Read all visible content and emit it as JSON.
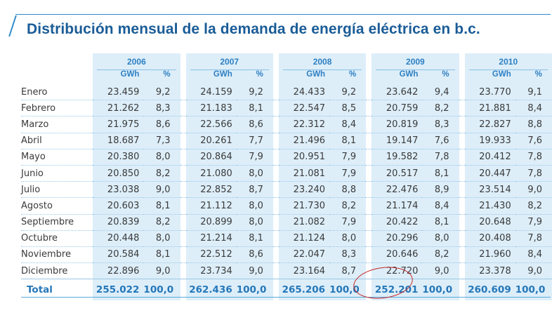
{
  "title": "Distribución mensual de la demanda de energía eléctrica en b.c.",
  "units": {
    "gwh": "GWh",
    "pct": "%"
  },
  "years": [
    "2006",
    "2007",
    "2008",
    "2009",
    "2010"
  ],
  "rows": [
    {
      "month": "Enero",
      "vals": [
        [
          "23.459",
          "9,2"
        ],
        [
          "24.159",
          "9,2"
        ],
        [
          "24.433",
          "9,2"
        ],
        [
          "23.642",
          "9,4"
        ],
        [
          "23.770",
          "9,1"
        ]
      ]
    },
    {
      "month": "Febrero",
      "vals": [
        [
          "21.262",
          "8,3"
        ],
        [
          "21.183",
          "8,1"
        ],
        [
          "22.547",
          "8,5"
        ],
        [
          "20.759",
          "8,2"
        ],
        [
          "21.881",
          "8,4"
        ]
      ]
    },
    {
      "month": "Marzo",
      "vals": [
        [
          "21.975",
          "8,6"
        ],
        [
          "22.566",
          "8,6"
        ],
        [
          "22.312",
          "8,4"
        ],
        [
          "20.819",
          "8,3"
        ],
        [
          "22.827",
          "8,8"
        ]
      ]
    },
    {
      "month": "Abril",
      "vals": [
        [
          "18.687",
          "7,3"
        ],
        [
          "20.261",
          "7,7"
        ],
        [
          "21.496",
          "8,1"
        ],
        [
          "19.147",
          "7,6"
        ],
        [
          "19.933",
          "7,6"
        ]
      ]
    },
    {
      "month": "Mayo",
      "vals": [
        [
          "20.380",
          "8,0"
        ],
        [
          "20.864",
          "7,9"
        ],
        [
          "20.951",
          "7,9"
        ],
        [
          "19.582",
          "7,8"
        ],
        [
          "20.412",
          "7,8"
        ]
      ]
    },
    {
      "month": "Junio",
      "vals": [
        [
          "20.850",
          "8,2"
        ],
        [
          "21.080",
          "8,0"
        ],
        [
          "21.081",
          "7,9"
        ],
        [
          "20.517",
          "8,1"
        ],
        [
          "20.447",
          "7,8"
        ]
      ]
    },
    {
      "month": "Julio",
      "vals": [
        [
          "23.038",
          "9,0"
        ],
        [
          "22.852",
          "8,7"
        ],
        [
          "23.240",
          "8,8"
        ],
        [
          "22.476",
          "8,9"
        ],
        [
          "23.514",
          "9,0"
        ]
      ]
    },
    {
      "month": "Agosto",
      "vals": [
        [
          "20.603",
          "8,1"
        ],
        [
          "21.112",
          "8,0"
        ],
        [
          "21.730",
          "8,2"
        ],
        [
          "21.174",
          "8,4"
        ],
        [
          "21.430",
          "8,2"
        ]
      ]
    },
    {
      "month": "Septiembre",
      "vals": [
        [
          "20.839",
          "8,2"
        ],
        [
          "20.899",
          "8,0"
        ],
        [
          "21.082",
          "7,9"
        ],
        [
          "20.422",
          "8,1"
        ],
        [
          "20.648",
          "7,9"
        ]
      ]
    },
    {
      "month": "Octubre",
      "vals": [
        [
          "20.448",
          "8,0"
        ],
        [
          "21.214",
          "8,1"
        ],
        [
          "21.124",
          "8,0"
        ],
        [
          "20.296",
          "8,0"
        ],
        [
          "20.408",
          "7,8"
        ]
      ]
    },
    {
      "month": "Noviembre",
      "vals": [
        [
          "20.584",
          "8,1"
        ],
        [
          "22.512",
          "8,6"
        ],
        [
          "22.047",
          "8,3"
        ],
        [
          "20.646",
          "8,2"
        ],
        [
          "21.960",
          "8,4"
        ]
      ]
    },
    {
      "month": "Diciembre",
      "vals": [
        [
          "22.896",
          "9,0"
        ],
        [
          "23.734",
          "9,0"
        ],
        [
          "23.164",
          "8,7"
        ],
        [
          "22.720",
          "9,0"
        ],
        [
          "23.378",
          "9,0"
        ]
      ]
    }
  ],
  "total": {
    "label": "Total",
    "vals": [
      [
        "255.022",
        "100,0"
      ],
      [
        "262.436",
        "100,0"
      ],
      [
        "265.206",
        "100,0"
      ],
      [
        "252.201",
        "100,0"
      ],
      [
        "260.609",
        "100,0"
      ]
    ]
  },
  "colors": {
    "header_text": "#2d7fc2",
    "column_fill": "#ddeef9",
    "title": "#1a5c97",
    "annotation_circle": "#c62828"
  },
  "annotation": {
    "type": "hand-drawn-ellipse",
    "target": "total.vals.3.0"
  }
}
